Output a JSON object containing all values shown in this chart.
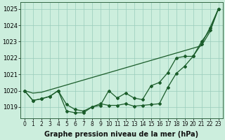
{
  "title": "Graphe pression niveau de la mer (hPa)",
  "hours": [
    0,
    1,
    2,
    3,
    4,
    5,
    6,
    7,
    8,
    9,
    10,
    11,
    12,
    13,
    14,
    15,
    16,
    17,
    18,
    19,
    20,
    21,
    22,
    23
  ],
  "ylim": [
    1018.3,
    1025.4
  ],
  "yticks": [
    1019,
    1020,
    1021,
    1022,
    1023,
    1024,
    1025
  ],
  "bg_color": "#cceedd",
  "grid_color": "#99ccbb",
  "line_color": "#1a5c2a",
  "line1": [
    1020.0,
    1019.85,
    1019.9,
    1020.05,
    1020.2,
    1020.35,
    1020.5,
    1020.65,
    1020.8,
    1020.95,
    1021.1,
    1021.25,
    1021.4,
    1021.55,
    1021.7,
    1021.85,
    1022.0,
    1022.15,
    1022.3,
    1022.45,
    1022.6,
    1022.75,
    1023.6,
    1025.0
  ],
  "line2": [
    1020.0,
    1019.4,
    1019.5,
    1019.65,
    1020.0,
    1019.15,
    1018.85,
    1018.75,
    1019.0,
    1019.1,
    1020.0,
    1019.55,
    1019.85,
    1019.55,
    1019.45,
    1020.3,
    1020.5,
    1021.1,
    1022.0,
    1022.1,
    1022.1,
    1023.0,
    1023.7,
    1025.0
  ],
  "line3": [
    1020.0,
    1019.4,
    1019.5,
    1019.65,
    1020.0,
    1018.75,
    1018.65,
    1018.65,
    1019.0,
    1019.2,
    1019.1,
    1019.1,
    1019.2,
    1019.05,
    1019.1,
    1019.15,
    1019.2,
    1020.2,
    1021.05,
    1021.5,
    1022.1,
    1022.85,
    1023.85,
    1025.0
  ],
  "marker": "D",
  "markersize": 2.0,
  "linewidth": 0.9,
  "tick_fontsize": 5.5,
  "ylabel_fontsize": 6.0,
  "xlabel_fontsize": 7.0
}
